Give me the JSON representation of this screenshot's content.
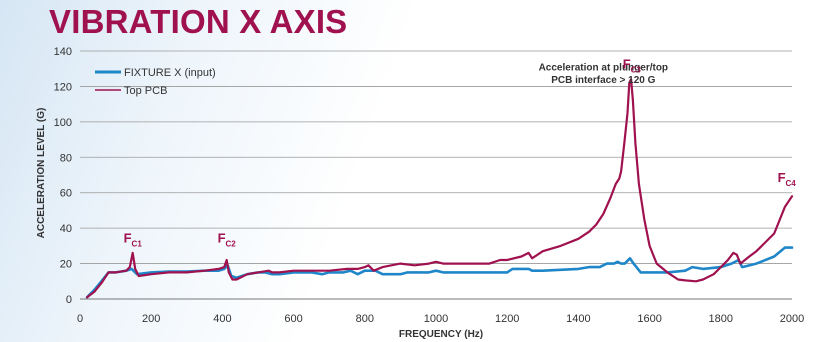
{
  "chart_data": {
    "type": "line",
    "title": "VIBRATION X AXIS",
    "xlabel": "FREQUENCY (Hz)",
    "ylabel": "ACCELERATION LEVEL (G)",
    "xlim": [
      0,
      2000
    ],
    "ylim": [
      0,
      140
    ],
    "xticks": [
      0,
      200,
      400,
      600,
      800,
      1000,
      1200,
      1400,
      1600,
      1800,
      2000
    ],
    "yticks": [
      0,
      20,
      40,
      60,
      80,
      100,
      120,
      140
    ],
    "grid": {
      "horizontal": true,
      "vertical": false
    },
    "legend": {
      "position": "top-left"
    },
    "series": [
      {
        "name": "FIXTURE X (input)",
        "color": "#1f87c9",
        "points": [
          [
            20,
            1
          ],
          [
            40,
            5
          ],
          [
            60,
            10
          ],
          [
            80,
            15
          ],
          [
            100,
            15
          ],
          [
            130,
            16
          ],
          [
            145,
            17
          ],
          [
            160,
            14
          ],
          [
            200,
            15
          ],
          [
            250,
            15.5
          ],
          [
            300,
            15.5
          ],
          [
            350,
            16
          ],
          [
            390,
            16
          ],
          [
            405,
            17
          ],
          [
            415,
            19
          ],
          [
            425,
            13
          ],
          [
            440,
            12
          ],
          [
            470,
            14
          ],
          [
            500,
            15
          ],
          [
            520,
            15
          ],
          [
            540,
            14
          ],
          [
            560,
            14
          ],
          [
            600,
            15
          ],
          [
            650,
            15
          ],
          [
            680,
            14
          ],
          [
            700,
            15
          ],
          [
            720,
            15
          ],
          [
            740,
            15
          ],
          [
            760,
            16
          ],
          [
            780,
            14
          ],
          [
            800,
            16
          ],
          [
            830,
            16
          ],
          [
            850,
            14
          ],
          [
            880,
            14
          ],
          [
            900,
            14
          ],
          [
            920,
            15
          ],
          [
            950,
            15
          ],
          [
            980,
            15
          ],
          [
            1000,
            16
          ],
          [
            1020,
            15
          ],
          [
            1100,
            15
          ],
          [
            1150,
            15
          ],
          [
            1200,
            15
          ],
          [
            1215,
            17
          ],
          [
            1260,
            17
          ],
          [
            1270,
            16
          ],
          [
            1300,
            16
          ],
          [
            1400,
            17
          ],
          [
            1430,
            18
          ],
          [
            1460,
            18
          ],
          [
            1480,
            20
          ],
          [
            1500,
            20
          ],
          [
            1510,
            21
          ],
          [
            1520,
            20
          ],
          [
            1530,
            20
          ],
          [
            1545,
            23
          ],
          [
            1555,
            20
          ],
          [
            1575,
            15
          ],
          [
            1600,
            15
          ],
          [
            1650,
            15
          ],
          [
            1700,
            16
          ],
          [
            1720,
            18
          ],
          [
            1750,
            17
          ],
          [
            1800,
            18
          ],
          [
            1830,
            20
          ],
          [
            1850,
            22
          ],
          [
            1860,
            18
          ],
          [
            1900,
            20
          ],
          [
            1950,
            24
          ],
          [
            1980,
            29
          ],
          [
            2000,
            29
          ]
        ]
      },
      {
        "name": "Top PCB",
        "color": "#a0114f",
        "points": [
          [
            20,
            1
          ],
          [
            40,
            4
          ],
          [
            60,
            9
          ],
          [
            80,
            15
          ],
          [
            100,
            15
          ],
          [
            130,
            16
          ],
          [
            140,
            18
          ],
          [
            148,
            26
          ],
          [
            155,
            17
          ],
          [
            165,
            13
          ],
          [
            200,
            14
          ],
          [
            250,
            15
          ],
          [
            300,
            15
          ],
          [
            350,
            16
          ],
          [
            390,
            17
          ],
          [
            405,
            18
          ],
          [
            412,
            22
          ],
          [
            418,
            15
          ],
          [
            428,
            11
          ],
          [
            440,
            11
          ],
          [
            470,
            14
          ],
          [
            500,
            15
          ],
          [
            530,
            16
          ],
          [
            540,
            15
          ],
          [
            560,
            15
          ],
          [
            600,
            16
          ],
          [
            650,
            16
          ],
          [
            700,
            16
          ],
          [
            750,
            17
          ],
          [
            780,
            17
          ],
          [
            800,
            18
          ],
          [
            810,
            19
          ],
          [
            825,
            16
          ],
          [
            850,
            18
          ],
          [
            900,
            20
          ],
          [
            940,
            19
          ],
          [
            980,
            20
          ],
          [
            1000,
            21
          ],
          [
            1020,
            20
          ],
          [
            1050,
            20
          ],
          [
            1100,
            20
          ],
          [
            1150,
            20
          ],
          [
            1180,
            22
          ],
          [
            1200,
            22
          ],
          [
            1240,
            24
          ],
          [
            1260,
            26
          ],
          [
            1270,
            23
          ],
          [
            1300,
            27
          ],
          [
            1350,
            30
          ],
          [
            1400,
            34
          ],
          [
            1430,
            38
          ],
          [
            1450,
            42
          ],
          [
            1470,
            48
          ],
          [
            1490,
            57
          ],
          [
            1505,
            65
          ],
          [
            1515,
            68
          ],
          [
            1520,
            72
          ],
          [
            1530,
            90
          ],
          [
            1538,
            105
          ],
          [
            1543,
            122
          ],
          [
            1548,
            124
          ],
          [
            1553,
            112
          ],
          [
            1560,
            88
          ],
          [
            1570,
            65
          ],
          [
            1585,
            45
          ],
          [
            1600,
            30
          ],
          [
            1620,
            20
          ],
          [
            1650,
            15
          ],
          [
            1680,
            11
          ],
          [
            1700,
            10.5
          ],
          [
            1730,
            10
          ],
          [
            1750,
            11
          ],
          [
            1780,
            14
          ],
          [
            1800,
            18
          ],
          [
            1820,
            22
          ],
          [
            1835,
            26
          ],
          [
            1845,
            25
          ],
          [
            1855,
            20
          ],
          [
            1880,
            24
          ],
          [
            1900,
            27
          ],
          [
            1950,
            37
          ],
          [
            1980,
            52
          ],
          [
            2000,
            58
          ]
        ]
      }
    ],
    "annotations": [
      {
        "text": "Acceleration at plunger/top",
        "x": 1470,
        "y": 129
      },
      {
        "text": "PCB interface > 120 G",
        "x": 1470,
        "y": 122
      },
      {
        "label": "F",
        "sub": "C1",
        "x": 148,
        "y": 32
      },
      {
        "label": "F",
        "sub": "C2",
        "x": 412,
        "y": 32
      },
      {
        "label": "F",
        "sub": "C3",
        "x": 1550,
        "y": 130
      },
      {
        "label": "F",
        "sub": "C4",
        "x": 1985,
        "y": 66
      }
    ]
  }
}
